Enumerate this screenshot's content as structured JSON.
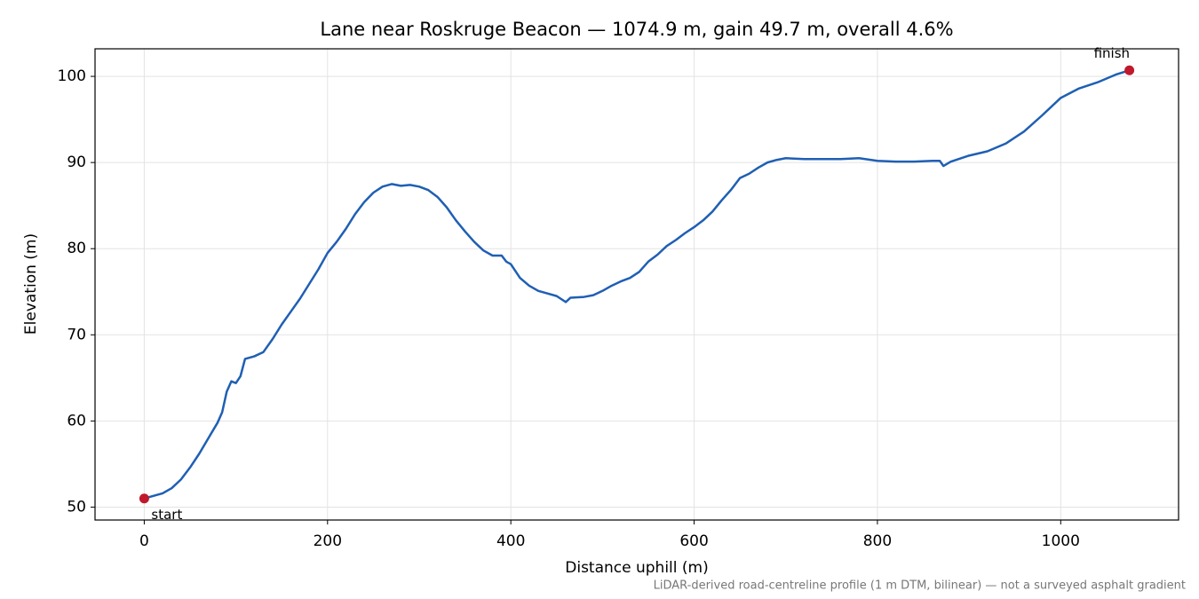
{
  "chart_data": {
    "type": "line",
    "title": "Lane near Roskruge Beacon — 1074.9 m, gain 49.7 m, overall 4.6%",
    "xlabel": "Distance uphill (m)",
    "ylabel": "Elevation (m)",
    "footnote": "LiDAR-derived road-centreline profile (1 m DTM, bilinear) — not a surveyed asphalt gradient",
    "x": [
      0,
      10,
      20,
      30,
      40,
      50,
      60,
      70,
      80,
      85,
      90,
      95,
      100,
      105,
      110,
      120,
      130,
      140,
      150,
      160,
      170,
      180,
      190,
      200,
      210,
      220,
      230,
      240,
      250,
      260,
      270,
      280,
      290,
      300,
      310,
      320,
      330,
      340,
      350,
      360,
      370,
      380,
      390,
      395,
      400,
      410,
      420,
      430,
      440,
      450,
      460,
      465,
      480,
      490,
      500,
      510,
      520,
      530,
      540,
      550,
      560,
      570,
      580,
      590,
      600,
      610,
      620,
      630,
      640,
      650,
      660,
      670,
      680,
      690,
      700,
      720,
      740,
      760,
      780,
      800,
      820,
      840,
      860,
      868,
      872,
      880,
      900,
      920,
      940,
      960,
      980,
      1000,
      1020,
      1040,
      1060,
      1074.9
    ],
    "series": [
      {
        "name": "elevation",
        "color": "#1f5fb4",
        "values": [
          51.0,
          51.3,
          51.6,
          52.2,
          53.2,
          54.6,
          56.2,
          58.0,
          59.8,
          61.0,
          63.4,
          64.6,
          64.4,
          65.2,
          67.2,
          67.5,
          68.0,
          69.5,
          71.2,
          72.7,
          74.2,
          75.9,
          77.6,
          79.5,
          80.8,
          82.3,
          84.0,
          85.4,
          86.5,
          87.2,
          87.5,
          87.3,
          87.4,
          87.2,
          86.8,
          86.0,
          84.8,
          83.3,
          82.0,
          80.8,
          79.8,
          79.2,
          79.2,
          78.5,
          78.2,
          76.6,
          75.7,
          75.1,
          74.8,
          74.5,
          73.8,
          74.3,
          74.4,
          74.6,
          75.1,
          75.7,
          76.2,
          76.6,
          77.3,
          78.5,
          79.3,
          80.3,
          81.0,
          81.8,
          82.5,
          83.3,
          84.3,
          85.6,
          86.8,
          88.2,
          88.7,
          89.4,
          90.0,
          90.3,
          90.5,
          90.4,
          90.4,
          90.4,
          90.5,
          90.2,
          90.1,
          90.1,
          90.2,
          90.2,
          89.6,
          90.1,
          90.8,
          91.3,
          92.2,
          93.6,
          95.5,
          97.5,
          98.6,
          99.3,
          100.2,
          100.7
        ]
      }
    ],
    "markers": [
      {
        "label": "start",
        "x": 0,
        "y": 51.0
      },
      {
        "label": "finish",
        "x": 1074.9,
        "y": 100.7
      }
    ],
    "marker_color": "#c0192b",
    "xlim": [
      -53.7,
      1128.6
    ],
    "ylim": [
      48.5,
      103.2
    ],
    "xticks": [
      0,
      200,
      400,
      600,
      800,
      1000
    ],
    "yticks": [
      50,
      60,
      70,
      80,
      90,
      100
    ],
    "grid": true
  }
}
